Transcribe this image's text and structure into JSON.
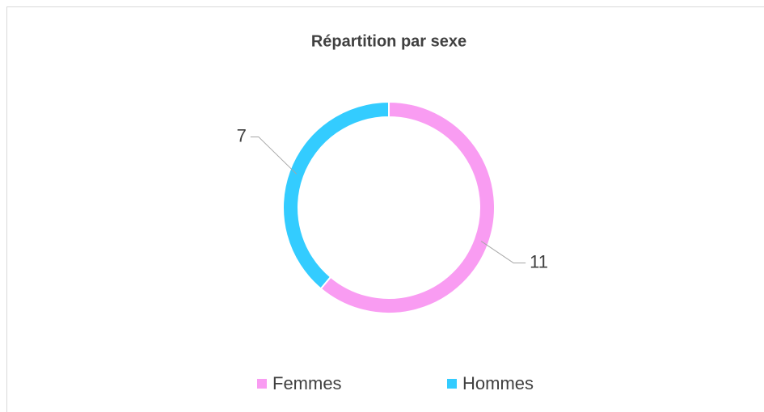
{
  "chart_data": {
    "type": "doughnut",
    "title": "Répartition par sexe",
    "categories": [
      "Femmes",
      "Hommes"
    ],
    "values": [
      11,
      7
    ],
    "colors": [
      "#f99cf2",
      "#33ccff"
    ],
    "legend": "bottom"
  }
}
